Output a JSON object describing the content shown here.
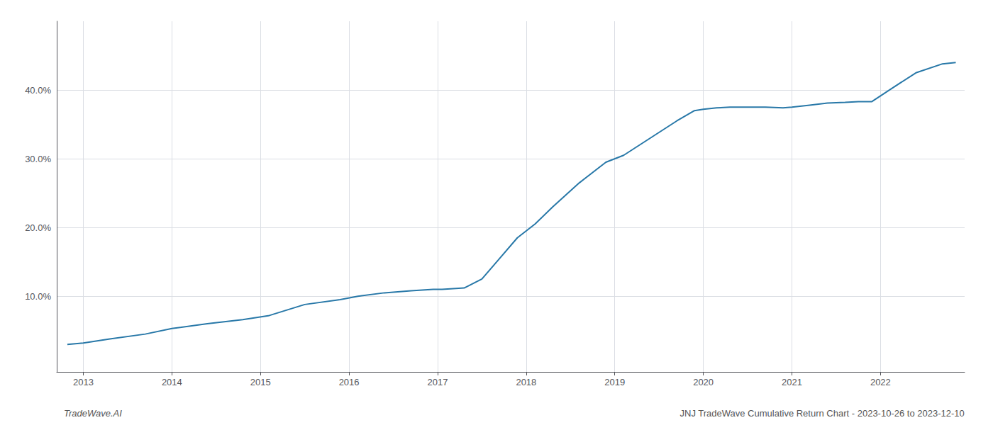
{
  "chart_data": {
    "type": "line",
    "x": [
      2012.82,
      2013.0,
      2013.3,
      2013.7,
      2014.0,
      2014.4,
      2014.8,
      2015.1,
      2015.5,
      2015.9,
      2016.1,
      2016.4,
      2016.7,
      2016.95,
      2017.0,
      2017.05,
      2017.3,
      2017.5,
      2017.7,
      2017.9,
      2018.1,
      2018.3,
      2018.6,
      2018.9,
      2019.1,
      2019.4,
      2019.7,
      2019.9,
      2020.0,
      2020.15,
      2020.3,
      2020.5,
      2020.7,
      2020.9,
      2021.0,
      2021.2,
      2021.4,
      2021.6,
      2021.75,
      2021.9,
      2022.1,
      2022.4,
      2022.7,
      2022.85
    ],
    "values": [
      3.0,
      3.2,
      3.8,
      4.5,
      5.3,
      6.0,
      6.6,
      7.2,
      8.8,
      9.5,
      10.0,
      10.5,
      10.8,
      11.0,
      11.0,
      11.0,
      11.2,
      12.5,
      15.5,
      18.5,
      20.5,
      23.0,
      26.5,
      29.5,
      30.5,
      33.0,
      35.5,
      37.0,
      37.2,
      37.4,
      37.5,
      37.5,
      37.5,
      37.4,
      37.5,
      37.8,
      38.1,
      38.2,
      38.3,
      38.3,
      40.0,
      42.5,
      43.8,
      44.0
    ],
    "color": "#2878a8",
    "xlim": [
      2012.7,
      2022.95
    ],
    "xticks": [
      2013,
      2014,
      2015,
      2016,
      2017,
      2018,
      2019,
      2020,
      2021,
      2022
    ],
    "ylim": [
      -1,
      50
    ],
    "yticks": [
      {
        "value": 10.0,
        "label": "10.0%"
      },
      {
        "value": 20.0,
        "label": "20.0%"
      },
      {
        "value": 30.0,
        "label": "30.0%"
      },
      {
        "value": 40.0,
        "label": "40.0%"
      }
    ],
    "grid": true,
    "annotations": [
      "TradeWave.AI",
      "JNJ TradeWave Cumulative Return Chart - 2023-10-26 to 2023-12-10"
    ]
  }
}
